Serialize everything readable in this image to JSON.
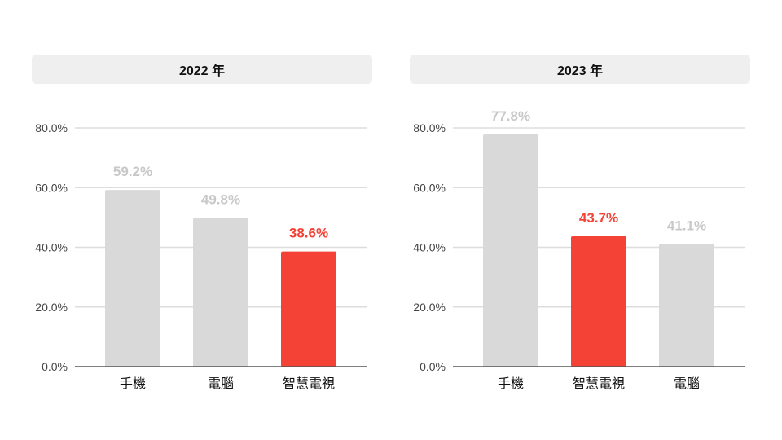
{
  "chart_data": [
    {
      "type": "bar",
      "title": "2022 年",
      "categories": [
        "手機",
        "電腦",
        "智慧電視"
      ],
      "values": [
        59.2,
        49.8,
        38.6
      ],
      "value_labels": [
        "59.2%",
        "49.8%",
        "38.6%"
      ],
      "highlight": "智慧電視",
      "ylim": [
        0,
        80
      ],
      "yticks": [
        0,
        20,
        40,
        60,
        80
      ],
      "ytick_labels": [
        "0.0%",
        "20.0%",
        "40.0%",
        "60.0%",
        "80.0%"
      ],
      "grid": true,
      "xlabel": "",
      "ylabel": ""
    },
    {
      "type": "bar",
      "title": "2023 年",
      "categories": [
        "手機",
        "智慧電視",
        "電腦"
      ],
      "values": [
        77.8,
        43.7,
        41.1
      ],
      "value_labels": [
        "77.8%",
        "43.7%",
        "41.1%"
      ],
      "highlight": "智慧電視",
      "ylim": [
        0,
        80
      ],
      "yticks": [
        0,
        20,
        40,
        60,
        80
      ],
      "ytick_labels": [
        "0.0%",
        "20.0%",
        "40.0%",
        "60.0%",
        "80.0%"
      ],
      "grid": true,
      "xlabel": "",
      "ylabel": ""
    }
  ],
  "colors": {
    "bar_default": "#d9d9d9",
    "bar_highlight": "#f44336",
    "label_default": "#c8c8c8",
    "label_highlight": "#f44336",
    "grid": "#dddddd",
    "axis": "#555555",
    "title_bg": "#efefef"
  }
}
